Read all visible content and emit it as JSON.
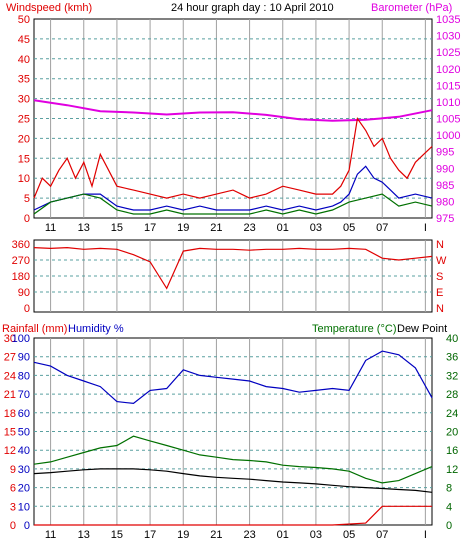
{
  "title": "24 hour graph day : 10 April 2010",
  "colors": {
    "red": "#e00000",
    "magenta": "#e000e0",
    "blue": "#0000c0",
    "green": "#007000",
    "darkgreen": "#006600",
    "black": "#000000",
    "grid_dash": "#5aa0a0",
    "grid_v": "#a0a0a0",
    "rain": "#e00000"
  },
  "chart_data": [
    {
      "type": "line",
      "name": "wind-baro",
      "left_label": "Windspeed (kmh)",
      "right_label": "Barometer (hPa)",
      "left_ticks": [
        "50",
        "45",
        "40",
        "35",
        "30",
        "25",
        "20",
        "15",
        "10",
        "5",
        "0"
      ],
      "right_ticks": [
        "1035",
        "1030",
        "1025",
        "1020",
        "1015",
        "1010",
        "1005",
        "1000",
        "995",
        "990",
        "985",
        "980",
        "975"
      ],
      "x_ticks": [
        "11",
        "13",
        "15",
        "17",
        "19",
        "21",
        "23",
        "01",
        "03",
        "05",
        "07",
        "I"
      ],
      "ylim_wind": [
        0,
        50
      ],
      "ylim_baro": [
        975,
        1035
      ],
      "series": [
        {
          "name": "Barometer",
          "axis": "right",
          "color": "#e000e0",
          "x": [
            0,
            2,
            4,
            6,
            8,
            10,
            12,
            14,
            16,
            18,
            20,
            22,
            24
          ],
          "y": [
            1010.5,
            1009,
            1007.2,
            1006.8,
            1006.2,
            1006.8,
            1006.9,
            1006.1,
            1004.8,
            1004.3,
            1004.6,
            1005.5,
            1007.5
          ]
        },
        {
          "name": "Gust",
          "axis": "left",
          "color": "#e00000",
          "x": [
            0,
            0.5,
            1,
            1.5,
            2,
            2.5,
            3,
            3.5,
            4,
            4.5,
            5,
            6,
            7,
            8,
            9,
            10,
            11,
            12,
            13,
            14,
            15,
            16,
            17,
            18,
            18.5,
            19,
            19.5,
            20,
            20.5,
            21,
            21.5,
            22,
            22.5,
            23,
            23.5,
            24
          ],
          "y": [
            5,
            10,
            8,
            12,
            15,
            10,
            14,
            8,
            16,
            12,
            8,
            7,
            6,
            5,
            6,
            5,
            6,
            7,
            5,
            6,
            8,
            7,
            6,
            6,
            8,
            12,
            25,
            22,
            18,
            20,
            15,
            12,
            10,
            14,
            16,
            18
          ]
        },
        {
          "name": "Average",
          "axis": "left",
          "color": "#0000c0",
          "x": [
            0,
            1,
            2,
            3,
            4,
            5,
            6,
            7,
            8,
            9,
            10,
            11,
            12,
            13,
            14,
            15,
            16,
            17,
            18,
            18.5,
            19,
            19.5,
            20,
            20.5,
            21,
            21.5,
            22,
            23,
            24
          ],
          "y": [
            2,
            4,
            5,
            6,
            6,
            3,
            2,
            2,
            3,
            2,
            3,
            2,
            2,
            2,
            3,
            2,
            3,
            2,
            3,
            4,
            6,
            11,
            13,
            10,
            9,
            7,
            5,
            6,
            5
          ]
        },
        {
          "name": "Direction_fill",
          "axis": "left",
          "color": "#007000",
          "x": [
            0,
            1,
            2,
            3,
            4,
            5,
            6,
            7,
            8,
            9,
            10,
            11,
            12,
            13,
            14,
            15,
            16,
            17,
            18,
            19,
            20,
            21,
            22,
            23,
            24
          ],
          "y": [
            1,
            4,
            5,
            6,
            5,
            2,
            1,
            1,
            2,
            1,
            1,
            1,
            1,
            1,
            2,
            1,
            2,
            1,
            2,
            4,
            5,
            6,
            3,
            4,
            3
          ]
        }
      ]
    },
    {
      "type": "line",
      "name": "direction",
      "left_ticks": [
        "360",
        "270",
        "180",
        "90",
        "0"
      ],
      "right_ticks": [
        "N",
        "W",
        "S",
        "E",
        "N"
      ],
      "ylim": [
        0,
        360
      ],
      "series": [
        {
          "name": "Wind direction",
          "color": "#e00000",
          "x": [
            0,
            1,
            2,
            3,
            4,
            5,
            6,
            7,
            8,
            9,
            10,
            11,
            12,
            13,
            14,
            15,
            16,
            17,
            18,
            19,
            20,
            21,
            22,
            23,
            24
          ],
          "y": [
            340,
            335,
            340,
            330,
            335,
            330,
            300,
            260,
            110,
            320,
            335,
            330,
            330,
            325,
            330,
            330,
            335,
            330,
            330,
            335,
            330,
            280,
            270,
            280,
            290
          ]
        }
      ]
    },
    {
      "type": "line",
      "name": "temp-hum-rain",
      "left_label_rain": "Rainfall (mm)",
      "left_label_hum": "Humidity %",
      "right_label": "Temperature (°C)",
      "right_label2": "Dew Point",
      "rain_ticks": [
        "30",
        "27",
        "24",
        "21",
        "18",
        "15",
        "12",
        "9",
        "6",
        "3",
        "0"
      ],
      "hum_ticks": [
        "100",
        "90",
        "80",
        "70",
        "60",
        "50",
        "40",
        "30",
        "20",
        "10",
        "0"
      ],
      "temp_ticks": [
        "40",
        "36",
        "32",
        "28",
        "24",
        "20",
        "16",
        "12",
        "8",
        "4",
        "0"
      ],
      "ylim_hum": [
        0,
        100
      ],
      "ylim_temp": [
        0,
        40
      ],
      "series": [
        {
          "name": "Humidity",
          "axis": "hum",
          "color": "#0000c0",
          "x": [
            0,
            1,
            2,
            3,
            4,
            5,
            6,
            7,
            8,
            9,
            10,
            11,
            12,
            13,
            14,
            15,
            16,
            17,
            18,
            19,
            20,
            21,
            22,
            23,
            24
          ],
          "y": [
            87,
            85,
            80,
            77,
            74,
            66,
            65,
            72,
            73,
            83,
            80,
            79,
            78,
            77,
            74,
            73,
            71,
            72,
            73,
            72,
            88,
            93,
            91,
            84,
            68
          ]
        },
        {
          "name": "Temperature",
          "axis": "temp",
          "color": "#007000",
          "x": [
            0,
            1,
            2,
            3,
            4,
            5,
            6,
            7,
            8,
            9,
            10,
            11,
            12,
            13,
            14,
            15,
            16,
            17,
            18,
            19,
            20,
            21,
            22,
            23,
            24
          ],
          "y": [
            13,
            13.5,
            14.5,
            15.5,
            16.5,
            17,
            19,
            18,
            17,
            16,
            15,
            14.5,
            14,
            13.8,
            13.5,
            12.8,
            12.5,
            12.3,
            12,
            11.5,
            10,
            9,
            9.5,
            11,
            12.5
          ]
        },
        {
          "name": "Dew Point",
          "axis": "temp",
          "color": "#000000",
          "x": [
            0,
            1,
            2,
            3,
            4,
            5,
            6,
            7,
            8,
            9,
            10,
            11,
            12,
            13,
            14,
            15,
            16,
            17,
            18,
            19,
            20,
            21,
            22,
            23,
            24
          ],
          "y": [
            11,
            11.2,
            11.5,
            11.8,
            12,
            12,
            12,
            11.8,
            11.5,
            11,
            10.5,
            10.2,
            10,
            9.8,
            9.5,
            9.2,
            9,
            8.8,
            8.5,
            8.2,
            8,
            7.8,
            7.6,
            7.4,
            7
          ]
        },
        {
          "name": "Rainfall",
          "axis": "hum",
          "color": "#e00000",
          "x": [
            0,
            5,
            10,
            14,
            18,
            20,
            21,
            22,
            23,
            24
          ],
          "y": [
            0,
            0,
            0,
            0,
            0,
            1,
            10,
            10,
            10,
            10
          ]
        }
      ]
    }
  ]
}
